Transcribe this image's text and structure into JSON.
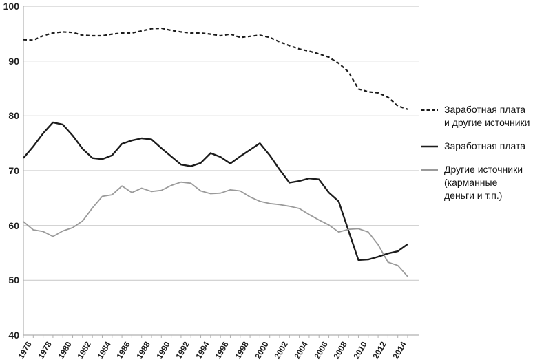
{
  "chart_data": {
    "type": "line",
    "title": "",
    "xlabel": "",
    "ylabel": "",
    "x": [
      1976,
      1977,
      1978,
      1979,
      1980,
      1981,
      1982,
      1983,
      1984,
      1985,
      1986,
      1987,
      1988,
      1989,
      1990,
      1991,
      1992,
      1993,
      1994,
      1995,
      1996,
      1997,
      1998,
      1999,
      2000,
      2001,
      2002,
      2003,
      2004,
      2005,
      2006,
      2007,
      2008,
      2009,
      2010,
      2011,
      2012,
      2013,
      2014,
      2015
    ],
    "x_tick_label_years": [
      1976,
      1978,
      1980,
      1982,
      1984,
      1986,
      1988,
      1990,
      1992,
      1994,
      1996,
      1998,
      2000,
      2002,
      2004,
      2006,
      2008,
      2010,
      2012,
      2014
    ],
    "y_axis": {
      "min": 40,
      "max": 100,
      "step": 10,
      "ticks": [
        40,
        50,
        60,
        70,
        80,
        90,
        100
      ]
    },
    "ylim": [
      40,
      100
    ],
    "grid": "horizontal",
    "legend_position": "right",
    "series": [
      {
        "name": "Заработная плата и другие источники",
        "legend_lines": [
          "Заработная плата",
          "и другие источники"
        ],
        "style": "dashed",
        "color": "#1c1c1c",
        "values": [
          93.9,
          93.8,
          94.6,
          95.1,
          95.3,
          95.2,
          94.7,
          94.6,
          94.6,
          94.9,
          95.1,
          95.1,
          95.5,
          95.9,
          96.0,
          95.6,
          95.3,
          95.1,
          95.1,
          94.9,
          94.6,
          94.9,
          94.3,
          94.5,
          94.7,
          94.3,
          93.5,
          92.8,
          92.2,
          91.8,
          91.3,
          90.7,
          89.6,
          88.0,
          84.9,
          84.4,
          84.2,
          83.4,
          81.8,
          81.2
        ]
      },
      {
        "name": "Заработная плата",
        "legend_lines": [
          "Заработная плата"
        ],
        "style": "solid",
        "color": "#1c1c1c",
        "values": [
          72.3,
          74.4,
          76.8,
          78.8,
          78.4,
          76.4,
          74.0,
          72.3,
          72.1,
          72.8,
          74.9,
          75.5,
          75.9,
          75.7,
          74.1,
          72.6,
          71.1,
          70.8,
          71.4,
          73.2,
          72.5,
          71.3,
          72.6,
          73.8,
          75.0,
          72.8,
          70.2,
          67.8,
          68.1,
          68.6,
          68.4,
          66.0,
          64.4,
          59.0,
          53.7,
          53.8,
          54.3,
          54.9,
          55.3,
          56.6
        ]
      },
      {
        "name": "Другие источники (карманные деньги и т.п.)",
        "legend_lines": [
          "Другие источники",
          "(карманные",
          "деньги и т.п.)"
        ],
        "style": "solid",
        "color": "#9a9a9a",
        "values": [
          60.7,
          59.2,
          58.9,
          58.0,
          59.0,
          59.6,
          60.8,
          63.2,
          65.3,
          65.6,
          67.2,
          66.0,
          66.8,
          66.2,
          66.4,
          67.3,
          67.9,
          67.7,
          66.3,
          65.8,
          65.9,
          66.5,
          66.3,
          65.2,
          64.4,
          64.0,
          63.8,
          63.5,
          63.1,
          62.0,
          61.0,
          60.1,
          58.8,
          59.3,
          59.4,
          58.8,
          56.5,
          53.3,
          52.7,
          50.7
        ]
      }
    ],
    "colors": {
      "grid": "#cdcdcd",
      "axis": "#b0b0b0",
      "black_line": "#1c1c1c",
      "gray_line": "#9a9a9a"
    }
  }
}
